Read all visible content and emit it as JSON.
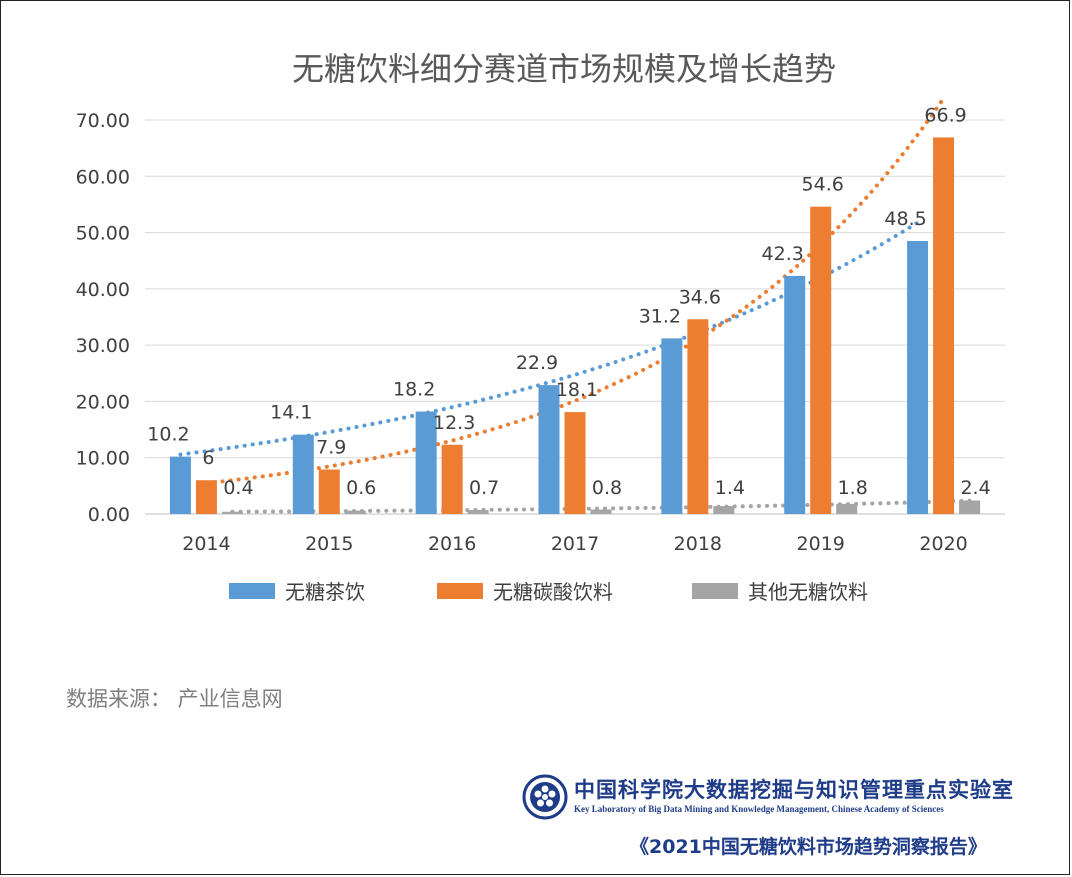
{
  "chart_data": {
    "type": "bar",
    "title": "无糖饮料细分赛道市场规模及增长趋势",
    "categories": [
      "2014",
      "2015",
      "2016",
      "2017",
      "2018",
      "2019",
      "2020"
    ],
    "series": [
      {
        "name": "无糖茶饮",
        "color": "#5b9bd5",
        "values": [
          10.2,
          14.1,
          18.2,
          22.9,
          31.2,
          42.3,
          48.5
        ]
      },
      {
        "name": "无糖碳酸饮料",
        "color": "#ed7d31",
        "values": [
          6.0,
          7.9,
          12.3,
          18.1,
          34.6,
          54.6,
          66.9
        ]
      },
      {
        "name": "其他无糖饮料",
        "color": "#a5a5a5",
        "values": [
          0.4,
          0.6,
          0.7,
          0.8,
          1.4,
          1.8,
          2.4
        ]
      }
    ],
    "trendlines": "dotted exponential trendline per series",
    "y_ticks": [
      "0.00",
      "10.00",
      "20.00",
      "30.00",
      "40.00",
      "50.00",
      "60.00",
      "70.00"
    ],
    "ylim": [
      0,
      70
    ],
    "grid": true,
    "legend": "bottom"
  },
  "source_text": "数据来源：  产业信息网",
  "lab": {
    "name_cn": "中国科学院大数据挖掘与知识管理重点实验室",
    "name_en": "Key Laboratory of Big Data Mining and Knowledge Management, Chinese Academy of Sciences"
  },
  "report_title": "《2021中国无糖饮料市场趋势洞察报告》"
}
